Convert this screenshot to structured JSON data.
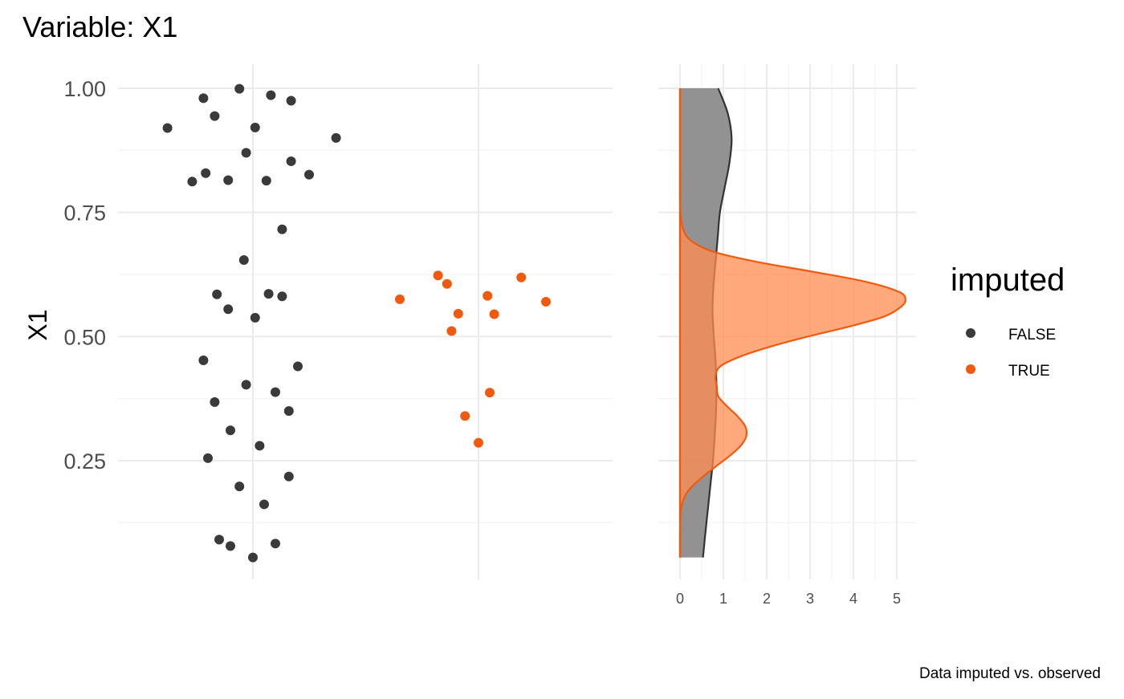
{
  "title": "Variable: X1",
  "caption": "Data imputed vs. observed",
  "colors": {
    "observed": "#3a3a3a",
    "imputed": "#f05a0f",
    "density_observed_fill": "#8c8c8c",
    "density_imputed_fill": "#ff8c50",
    "axis_text": "#4d4d4d"
  },
  "legend": {
    "title": "imputed",
    "items": [
      {
        "label": "FALSE",
        "color": "#3a3a3a"
      },
      {
        "label": "TRUE",
        "color": "#f05a0f"
      }
    ]
  },
  "chart_data": [
    {
      "type": "scatter",
      "ylabel": "X1",
      "xlabel": "",
      "ylim": [
        0.04,
        1.04
      ],
      "y_ticks": [
        "0.25",
        "0.50",
        "0.75",
        "1.00"
      ],
      "grid": true,
      "note": "jittered strip plot: observed (FALSE) group left, imputed (TRUE) group right",
      "series": [
        {
          "name": "FALSE",
          "points": [
            {
              "x": -0.06,
              "y": 0.999
            },
            {
              "x": -0.22,
              "y": 0.98
            },
            {
              "x": 0.08,
              "y": 0.986
            },
            {
              "x": 0.17,
              "y": 0.975
            },
            {
              "x": -0.17,
              "y": 0.944
            },
            {
              "x": -0.38,
              "y": 0.92
            },
            {
              "x": 0.01,
              "y": 0.921
            },
            {
              "x": 0.37,
              "y": 0.9
            },
            {
              "x": -0.03,
              "y": 0.87
            },
            {
              "x": 0.17,
              "y": 0.853
            },
            {
              "x": -0.21,
              "y": 0.829
            },
            {
              "x": 0.25,
              "y": 0.826
            },
            {
              "x": -0.11,
              "y": 0.815
            },
            {
              "x": 0.06,
              "y": 0.814
            },
            {
              "x": -0.27,
              "y": 0.812
            },
            {
              "x": 0.13,
              "y": 0.716
            },
            {
              "x": -0.04,
              "y": 0.654
            },
            {
              "x": -0.16,
              "y": 0.585
            },
            {
              "x": 0.07,
              "y": 0.586
            },
            {
              "x": 0.13,
              "y": 0.581
            },
            {
              "x": -0.11,
              "y": 0.555
            },
            {
              "x": 0.01,
              "y": 0.538
            },
            {
              "x": -0.22,
              "y": 0.452
            },
            {
              "x": 0.2,
              "y": 0.44
            },
            {
              "x": -0.03,
              "y": 0.403
            },
            {
              "x": 0.1,
              "y": 0.388
            },
            {
              "x": -0.17,
              "y": 0.368
            },
            {
              "x": 0.16,
              "y": 0.35
            },
            {
              "x": -0.1,
              "y": 0.311
            },
            {
              "x": 0.03,
              "y": 0.28
            },
            {
              "x": -0.2,
              "y": 0.255
            },
            {
              "x": 0.16,
              "y": 0.218
            },
            {
              "x": -0.06,
              "y": 0.198
            },
            {
              "x": 0.05,
              "y": 0.162
            },
            {
              "x": -0.15,
              "y": 0.091
            },
            {
              "x": 0.1,
              "y": 0.083
            },
            {
              "x": -0.1,
              "y": 0.078
            },
            {
              "x": 0.0,
              "y": 0.055
            }
          ]
        },
        {
          "name": "TRUE",
          "points": [
            {
              "x": -0.18,
              "y": 0.623
            },
            {
              "x": 0.19,
              "y": 0.619
            },
            {
              "x": -0.14,
              "y": 0.606
            },
            {
              "x": 0.04,
              "y": 0.582
            },
            {
              "x": -0.35,
              "y": 0.575
            },
            {
              "x": 0.3,
              "y": 0.57
            },
            {
              "x": -0.09,
              "y": 0.546
            },
            {
              "x": 0.07,
              "y": 0.545
            },
            {
              "x": -0.12,
              "y": 0.511
            },
            {
              "x": 0.05,
              "y": 0.387
            },
            {
              "x": -0.06,
              "y": 0.34
            },
            {
              "x": 0.0,
              "y": 0.286
            }
          ]
        }
      ]
    },
    {
      "type": "area",
      "note": "horizontal density plot of X1 by group",
      "xlabel": "",
      "ylabel": "",
      "xlim": [
        -0.1,
        5.5
      ],
      "x_ticks": [
        "0",
        "1",
        "2",
        "3",
        "4",
        "5"
      ],
      "ylim": [
        0.04,
        1.04
      ],
      "grid": true,
      "series": [
        {
          "name": "FALSE",
          "y": [
            0.055,
            0.1,
            0.15,
            0.2,
            0.25,
            0.3,
            0.35,
            0.4,
            0.45,
            0.5,
            0.55,
            0.6,
            0.65,
            0.7,
            0.75,
            0.8,
            0.85,
            0.9,
            0.95,
            1.0
          ],
          "density": [
            0.53,
            0.58,
            0.64,
            0.7,
            0.76,
            0.8,
            0.83,
            0.84,
            0.82,
            0.78,
            0.75,
            0.77,
            0.82,
            0.87,
            0.92,
            1.03,
            1.14,
            1.19,
            1.1,
            0.88
          ]
        },
        {
          "name": "TRUE",
          "y": [
            0.055,
            0.1,
            0.15,
            0.18,
            0.2,
            0.22,
            0.24,
            0.26,
            0.28,
            0.3,
            0.32,
            0.34,
            0.36,
            0.38,
            0.4,
            0.42,
            0.44,
            0.46,
            0.48,
            0.5,
            0.52,
            0.54,
            0.56,
            0.575,
            0.59,
            0.61,
            0.63,
            0.65,
            0.67,
            0.69,
            0.71,
            0.74,
            0.78,
            0.85,
            0.92,
            1.0
          ],
          "density": [
            0.0,
            0.0,
            0.02,
            0.12,
            0.3,
            0.56,
            0.85,
            1.15,
            1.4,
            1.53,
            1.5,
            1.32,
            1.08,
            0.88,
            0.85,
            0.82,
            0.93,
            1.4,
            2.1,
            2.95,
            3.9,
            4.7,
            5.1,
            5.2,
            5.05,
            4.3,
            3.1,
            1.8,
            0.8,
            0.3,
            0.1,
            0.02,
            0.0,
            0.0,
            0.0,
            0.0
          ]
        }
      ]
    }
  ]
}
